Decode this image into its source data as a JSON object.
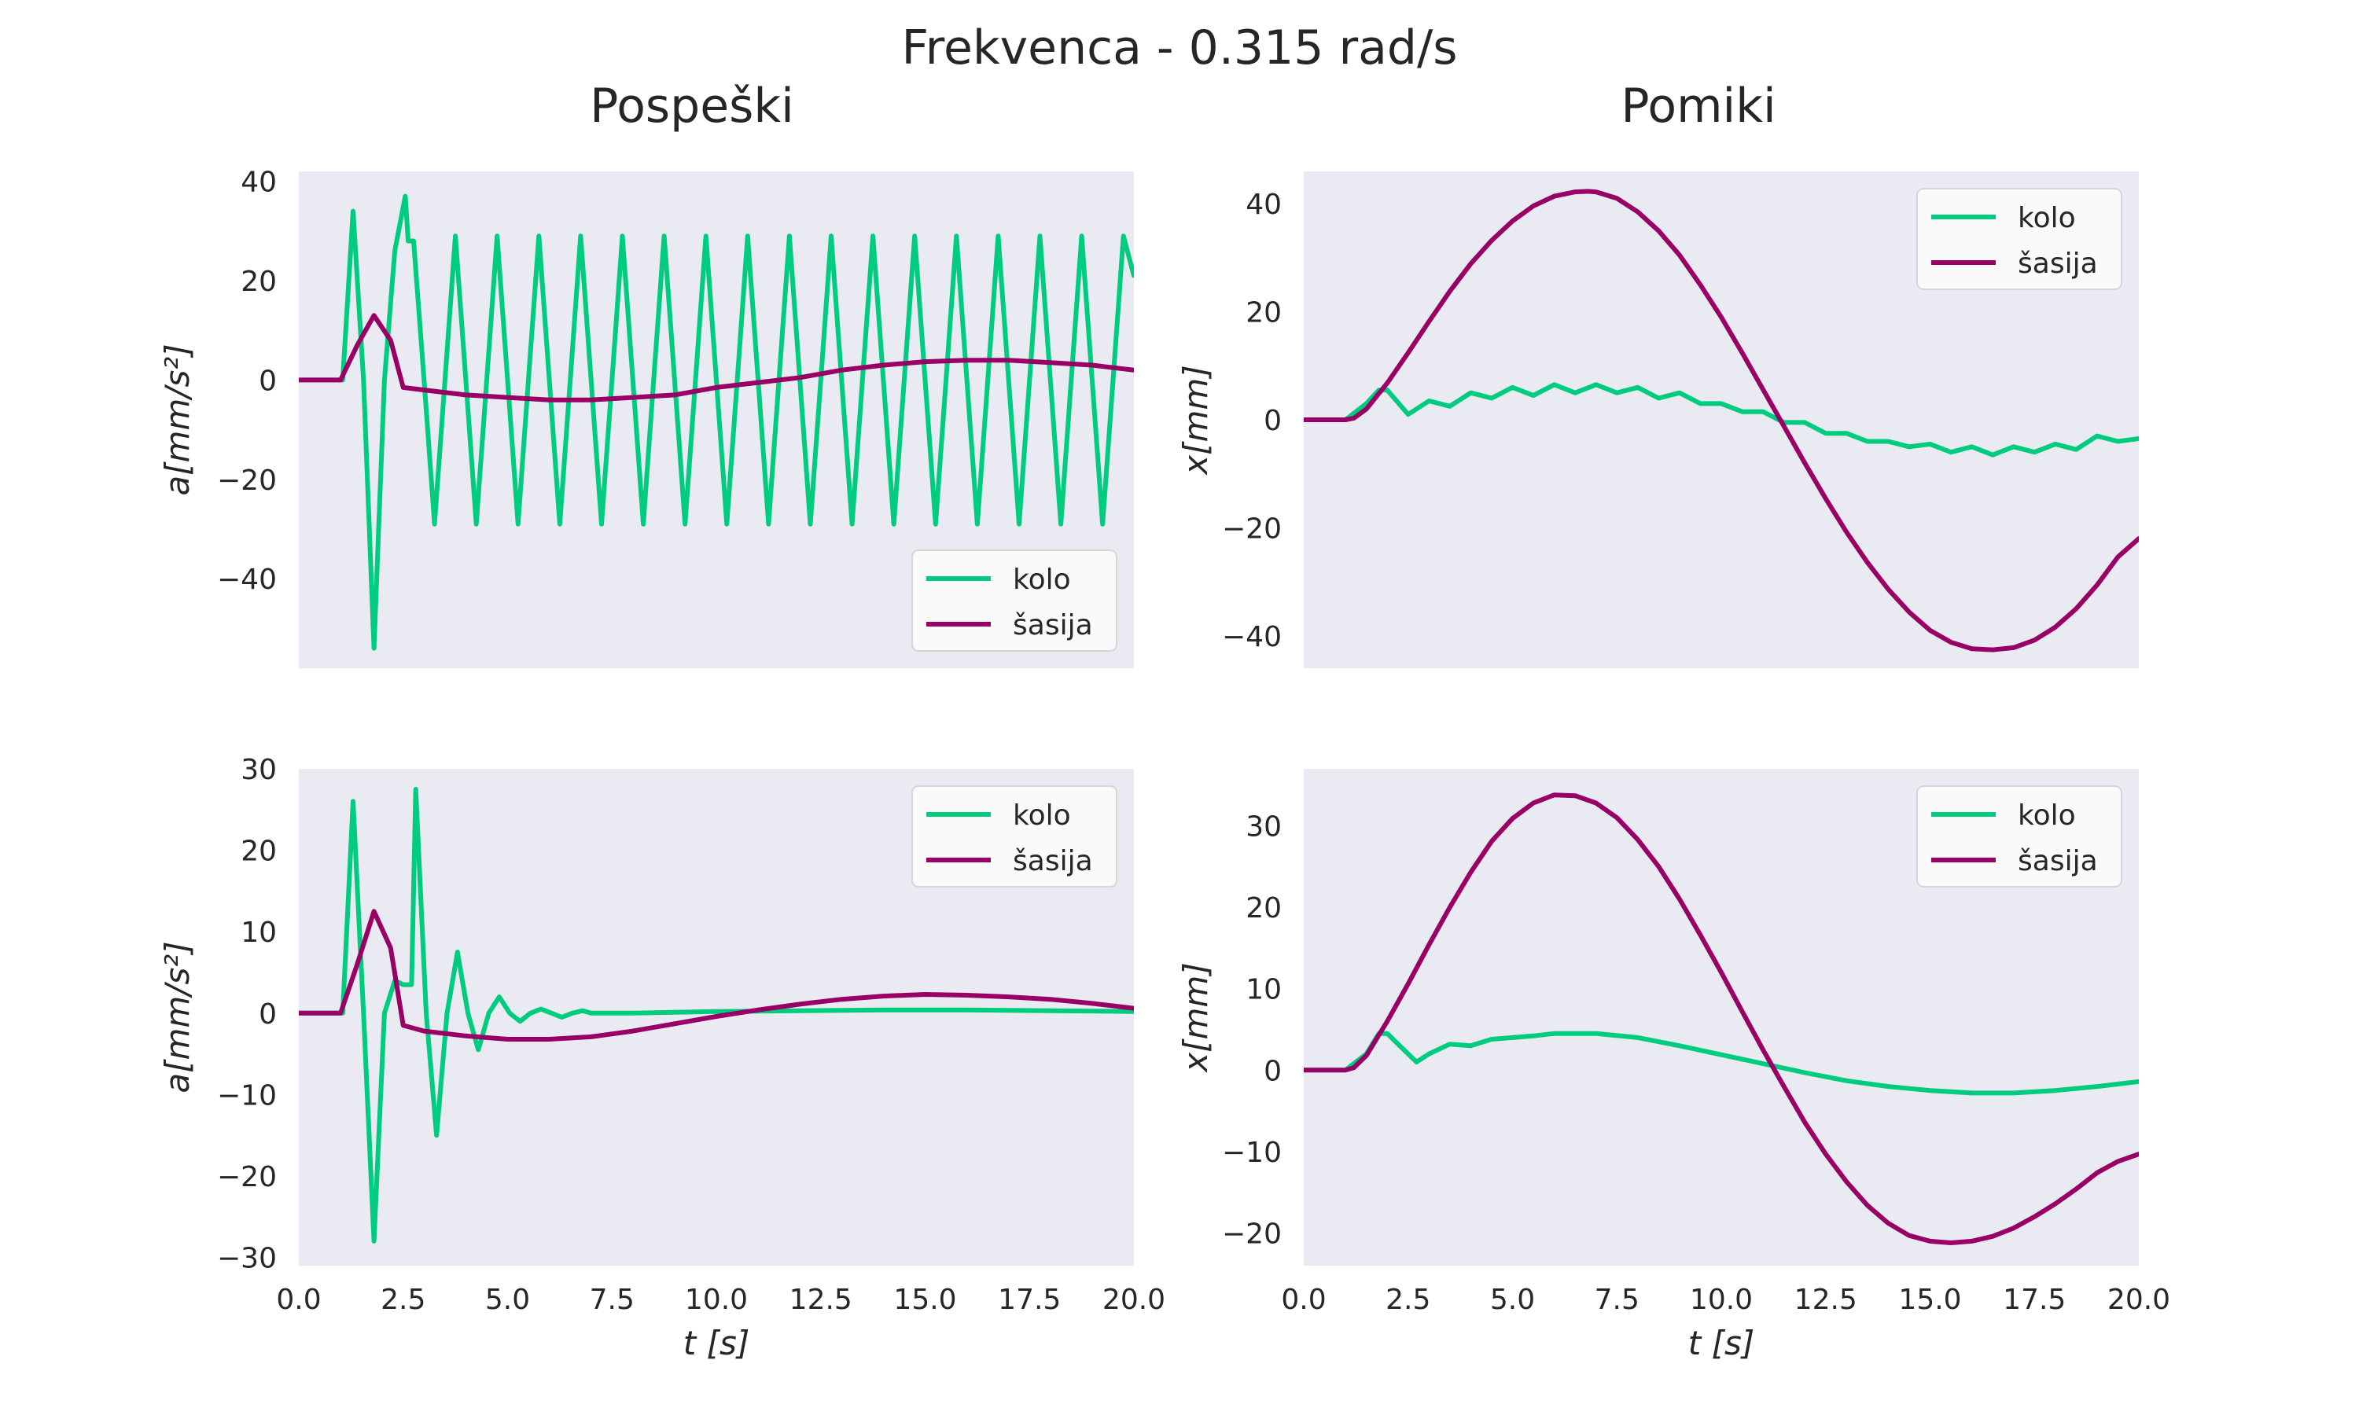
{
  "figure": {
    "suptitle": "Frekvenca - 0.315 rad/s",
    "column_titles": [
      "Pospeški",
      "Pomiki"
    ]
  },
  "colors": {
    "kolo": "#00cc80",
    "sasija": "#990066",
    "axes_bg": "#eaeaf2",
    "legend_bg": "#fafafa"
  },
  "chart_data": [
    {
      "id": "acc-top",
      "type": "line",
      "title": "",
      "xlabel": "",
      "ylabel": "a[mm/s²]",
      "xlim": [
        0,
        20
      ],
      "ylim": [
        -58,
        42
      ],
      "xticks": [],
      "yticks": [
        -40,
        -20,
        0,
        20,
        40
      ],
      "legend": "lower-right",
      "grid": false,
      "series": [
        {
          "name": "kolo",
          "color": "#00cc80",
          "x": [
            0,
            1,
            1.05,
            1.3,
            1.55,
            1.8,
            2.05,
            2.3,
            2.55,
            2.62,
            2.75,
            3.0,
            3.25,
            3.5,
            3.75,
            4.0,
            4.25,
            4.5,
            4.75,
            5.0,
            5.25,
            5.5,
            5.75,
            6.0,
            6.25,
            6.5,
            6.75,
            7.0,
            7.25,
            7.5,
            7.75,
            8.0,
            8.25,
            8.5,
            8.75,
            9.0,
            9.25,
            9.5,
            9.75,
            10.0,
            10.25,
            10.5,
            10.75,
            11.0,
            11.25,
            11.5,
            11.75,
            12.0,
            12.25,
            12.5,
            12.75,
            13.0,
            13.25,
            13.5,
            13.75,
            14.0,
            14.25,
            14.5,
            14.75,
            15.0,
            15.25,
            15.5,
            15.75,
            16.0,
            16.25,
            16.5,
            16.75,
            17.0,
            17.25,
            17.5,
            17.75,
            18.0,
            18.25,
            18.5,
            18.75,
            19.0,
            19.25,
            19.5,
            19.75,
            20.0
          ],
          "y": [
            0,
            0,
            0,
            34,
            0,
            -54,
            0,
            26,
            37,
            28,
            28,
            0,
            -29,
            0,
            29,
            0,
            -29,
            0,
            29,
            0,
            -29,
            0,
            29,
            0,
            -29,
            0,
            29,
            0,
            -29,
            0,
            29,
            0,
            -29,
            0,
            29,
            0,
            -29,
            0,
            29,
            0,
            -29,
            0,
            29,
            0,
            -29,
            0,
            29,
            0,
            -29,
            0,
            29,
            0,
            -29,
            0,
            29,
            0,
            -29,
            0,
            29,
            0,
            -29,
            0,
            29,
            0,
            -29,
            0,
            29,
            0,
            -29,
            0,
            29,
            0,
            -29,
            0,
            29,
            0,
            -29,
            0,
            29,
            21
          ]
        },
        {
          "name": "šasija",
          "color": "#990066",
          "x": [
            0,
            1,
            1.4,
            1.8,
            2.2,
            2.5,
            3,
            4,
            5,
            6,
            7,
            8,
            9,
            10,
            11,
            12,
            13,
            14,
            15,
            16,
            17,
            18,
            19,
            20
          ],
          "y": [
            0,
            0,
            7,
            13,
            8,
            -1.5,
            -2,
            -3,
            -3.5,
            -4,
            -4,
            -3.5,
            -3,
            -1.5,
            -0.5,
            0.5,
            2,
            3,
            3.7,
            4,
            4,
            3.5,
            3,
            2
          ]
        }
      ]
    },
    {
      "id": "pos-top",
      "type": "line",
      "title": "",
      "xlabel": "",
      "ylabel": "x[mm]",
      "xlim": [
        0,
        20
      ],
      "ylim": [
        -46,
        46
      ],
      "xticks": [],
      "yticks": [
        -40,
        -20,
        0,
        20,
        40
      ],
      "legend": "upper-right",
      "grid": false,
      "series": [
        {
          "name": "kolo",
          "color": "#00cc80",
          "x": [
            0,
            1,
            1.5,
            1.8,
            2.0,
            2.5,
            3.0,
            3.5,
            4.0,
            4.5,
            5.0,
            5.5,
            6.0,
            6.5,
            7.0,
            7.5,
            8.0,
            8.5,
            9.0,
            9.5,
            10.0,
            10.5,
            11.0,
            11.5,
            12.0,
            12.5,
            13.0,
            13.5,
            14.0,
            14.5,
            15.0,
            15.5,
            16.0,
            16.5,
            17.0,
            17.5,
            18.0,
            18.5,
            19.0,
            19.5,
            20.0
          ],
          "y": [
            0,
            0,
            3,
            5.5,
            5.5,
            1,
            3.5,
            2.5,
            5,
            4,
            6,
            4.5,
            6.5,
            5,
            6.5,
            5,
            6,
            4,
            5,
            3,
            3,
            1.5,
            1.5,
            -0.5,
            -0.5,
            -2.5,
            -2.5,
            -4,
            -4,
            -5,
            -4.5,
            -6,
            -5,
            -6.5,
            -5,
            -6,
            -4.5,
            -5.5,
            -3,
            -4,
            -3.5
          ]
        },
        {
          "name": "šasija",
          "color": "#990066",
          "x": [
            0,
            1,
            1.2,
            1.5,
            2,
            2.5,
            3,
            3.5,
            4,
            4.5,
            5,
            5.5,
            6,
            6.5,
            6.8,
            7,
            7.5,
            8,
            8.5,
            9,
            9.5,
            10,
            10.5,
            11,
            11.5,
            12,
            12.5,
            13,
            13.5,
            14,
            14.5,
            15,
            15.5,
            16,
            16.5,
            17,
            17.5,
            18,
            18.5,
            19,
            19.5,
            20
          ],
          "y": [
            0,
            0,
            0.3,
            2,
            6.8,
            12.4,
            18.2,
            23.8,
            28.9,
            33.2,
            36.8,
            39.6,
            41.4,
            42.2,
            42.3,
            42.2,
            41,
            38.5,
            35,
            30.5,
            25,
            19,
            12.4,
            5.6,
            -1.2,
            -8,
            -14.6,
            -20.8,
            -26.4,
            -31.4,
            -35.6,
            -39,
            -41.2,
            -42.4,
            -42.6,
            -42.2,
            -40.8,
            -38.4,
            -35,
            -30.6,
            -25.4,
            -22
          ]
        }
      ]
    },
    {
      "id": "acc-bottom",
      "type": "line",
      "title": "",
      "xlabel": "t [s]",
      "ylabel": "a[mm/s²]",
      "xlim": [
        0,
        20
      ],
      "ylim": [
        -31,
        30
      ],
      "xticks": [
        0,
        2.5,
        5,
        7.5,
        10,
        12.5,
        15,
        17.5,
        20
      ],
      "yticks": [
        -30,
        -20,
        -10,
        0,
        10,
        20,
        30
      ],
      "legend": "upper-right",
      "grid": false,
      "series": [
        {
          "name": "kolo",
          "color": "#00cc80",
          "x": [
            0,
            1,
            1.05,
            1.3,
            1.55,
            1.8,
            2.05,
            2.3,
            2.5,
            2.6,
            2.7,
            2.8,
            3.05,
            3.3,
            3.55,
            3.8,
            4.05,
            4.3,
            4.55,
            4.8,
            5.05,
            5.3,
            5.55,
            5.8,
            6.05,
            6.3,
            6.55,
            6.8,
            7.0,
            8.0,
            10,
            12,
            14,
            16,
            18,
            20
          ],
          "y": [
            0,
            0,
            0,
            26,
            0,
            -28,
            0,
            4,
            3.5,
            3.5,
            3.5,
            27.5,
            0,
            -15,
            0,
            7.5,
            0,
            -4.5,
            0,
            2,
            0,
            -1,
            0,
            0.5,
            0,
            -0.5,
            0,
            0.3,
            0,
            0,
            0.2,
            0.3,
            0.4,
            0.4,
            0.3,
            0.2
          ]
        },
        {
          "name": "šasija",
          "color": "#990066",
          "x": [
            0,
            1,
            1.4,
            1.8,
            2.2,
            2.5,
            3,
            3.5,
            4,
            5,
            6,
            7,
            8,
            9,
            10,
            11,
            12,
            13,
            14,
            15,
            16,
            17,
            18,
            19,
            20
          ],
          "y": [
            0,
            0,
            6,
            12.5,
            8,
            -1.5,
            -2.2,
            -2.5,
            -2.8,
            -3.2,
            -3.2,
            -2.9,
            -2.2,
            -1.3,
            -0.4,
            0.4,
            1.1,
            1.7,
            2.1,
            2.3,
            2.2,
            2,
            1.7,
            1.2,
            0.6
          ]
        }
      ]
    },
    {
      "id": "pos-bottom",
      "type": "line",
      "title": "",
      "xlabel": "t [s]",
      "ylabel": "x[mm]",
      "xlim": [
        0,
        20
      ],
      "ylim": [
        -24,
        37
      ],
      "xticks": [
        0,
        2.5,
        5,
        7.5,
        10,
        12.5,
        15,
        17.5,
        20
      ],
      "yticks": [
        -20,
        -10,
        0,
        10,
        20,
        30
      ],
      "legend": "upper-right",
      "grid": false,
      "series": [
        {
          "name": "kolo",
          "color": "#00cc80",
          "x": [
            0,
            1,
            1.5,
            1.8,
            2.0,
            2.3,
            2.7,
            3.0,
            3.5,
            4.0,
            4.5,
            5.0,
            5.5,
            6.0,
            7.0,
            8.0,
            9.0,
            10,
            11,
            12,
            13,
            14,
            15,
            16,
            17,
            18,
            19,
            20
          ],
          "y": [
            0,
            0,
            2,
            4.5,
            4.5,
            3,
            1,
            2,
            3.2,
            3,
            3.8,
            4,
            4.2,
            4.5,
            4.5,
            4,
            3,
            1.9,
            0.8,
            -0.3,
            -1.3,
            -2,
            -2.5,
            -2.8,
            -2.8,
            -2.5,
            -2,
            -1.4
          ]
        },
        {
          "name": "šasija",
          "color": "#990066",
          "x": [
            0,
            1,
            1.2,
            1.5,
            2,
            2.5,
            3,
            3.5,
            4,
            4.5,
            5,
            5.5,
            6,
            6.5,
            7,
            7.5,
            8,
            8.5,
            9,
            9.5,
            10,
            10.5,
            11,
            11.5,
            12,
            12.5,
            13,
            13.5,
            14,
            14.5,
            15,
            15.5,
            16,
            16.5,
            17,
            17.5,
            18,
            18.5,
            19,
            19.5,
            20
          ],
          "y": [
            0,
            0,
            0.3,
            1.8,
            6,
            10.6,
            15.4,
            20,
            24.3,
            28.1,
            30.9,
            32.8,
            33.8,
            33.7,
            32.8,
            31,
            28.3,
            25,
            21,
            16.6,
            12,
            7.2,
            2.5,
            -2,
            -6.4,
            -10.3,
            -13.7,
            -16.6,
            -18.8,
            -20.3,
            -21,
            -21.2,
            -21,
            -20.4,
            -19.4,
            -18,
            -16.4,
            -14.6,
            -12.6,
            -11.2,
            -10.3
          ]
        }
      ]
    }
  ]
}
